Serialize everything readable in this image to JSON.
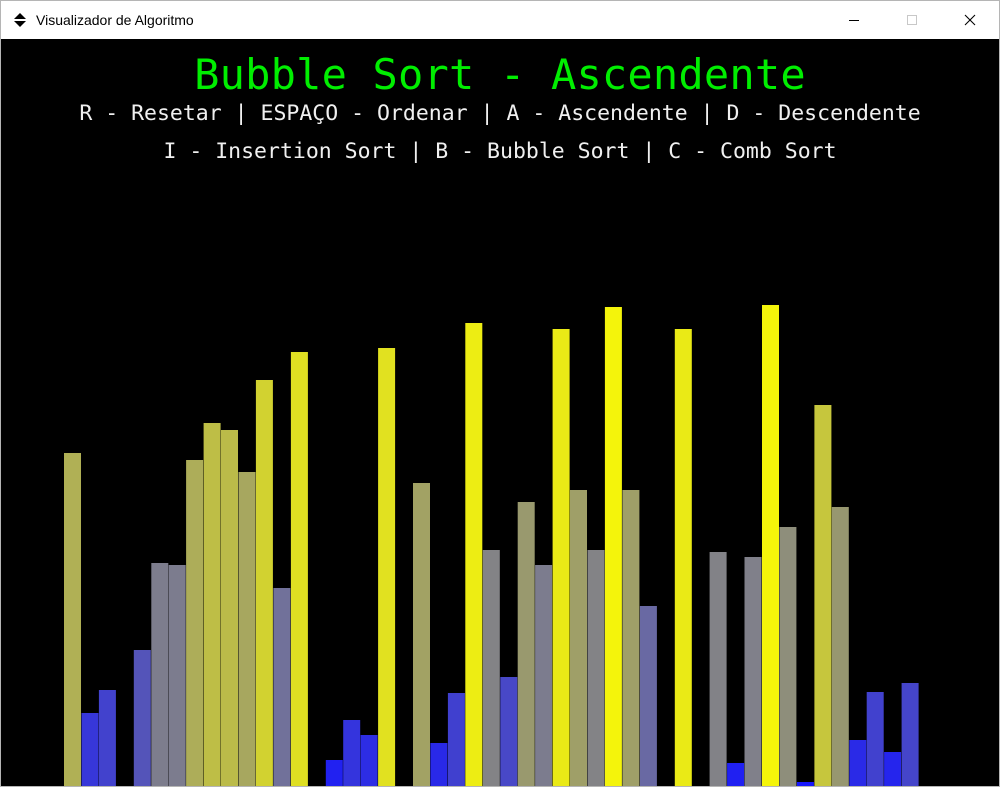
{
  "window": {
    "title": "Visualizador de Algoritmo",
    "icon": "up-down-arrows-icon",
    "controls": [
      "minimize-icon",
      "maximize-icon",
      "close-icon"
    ]
  },
  "header": {
    "title": "Bubble Sort - Ascendente",
    "help_line_1": "R - Resetar | ESPAÇO - Ordenar | A - Ascendente | D - Descendente",
    "help_line_2": "I - Insertion Sort | B - Bubble Sort | C - Comb Sort"
  },
  "colors": {
    "background": "#000000",
    "title": "#00ee00",
    "text": "#f0f0f0",
    "low": "#1414ff",
    "high": "#f5f50a"
  },
  "chart_data": {
    "type": "bar",
    "color_scale": "blue (short) to yellow (tall)",
    "values": [
      335,
      75,
      98,
      2,
      138,
      225,
      223,
      328,
      365,
      358,
      316,
      408,
      200,
      436,
      0,
      28,
      68,
      53,
      440,
      2,
      305,
      45,
      95,
      465,
      238,
      111,
      286,
      223,
      459,
      298,
      238,
      481,
      298,
      182,
      0,
      459,
      2,
      236,
      25,
      231,
      483,
      261,
      6,
      383,
      281,
      48,
      96,
      36,
      105
    ]
  }
}
